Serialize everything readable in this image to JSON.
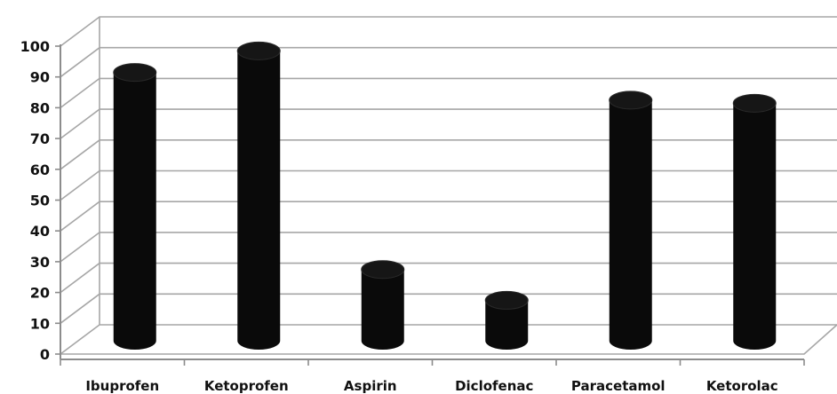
{
  "chart_data": {
    "type": "bar",
    "style": "3d-cylinder",
    "categories": [
      "Ibuprofen",
      "Ketoprofen",
      "Aspirin",
      "Diclofenac",
      "Paracetamol",
      "Ketorolac"
    ],
    "values": [
      88,
      95,
      24,
      14,
      79,
      78
    ],
    "title": "",
    "xlabel": "",
    "ylabel": "",
    "ylim": [
      0,
      100
    ],
    "yticks": [
      0,
      10,
      20,
      30,
      40,
      50,
      60,
      70,
      80,
      90,
      100
    ],
    "grid": true,
    "legend": "none",
    "colors": {
      "bar": "#0a0a0a",
      "grid": "#a6a6a6",
      "axis": "#8c8c8c",
      "text": "#111111"
    }
  }
}
